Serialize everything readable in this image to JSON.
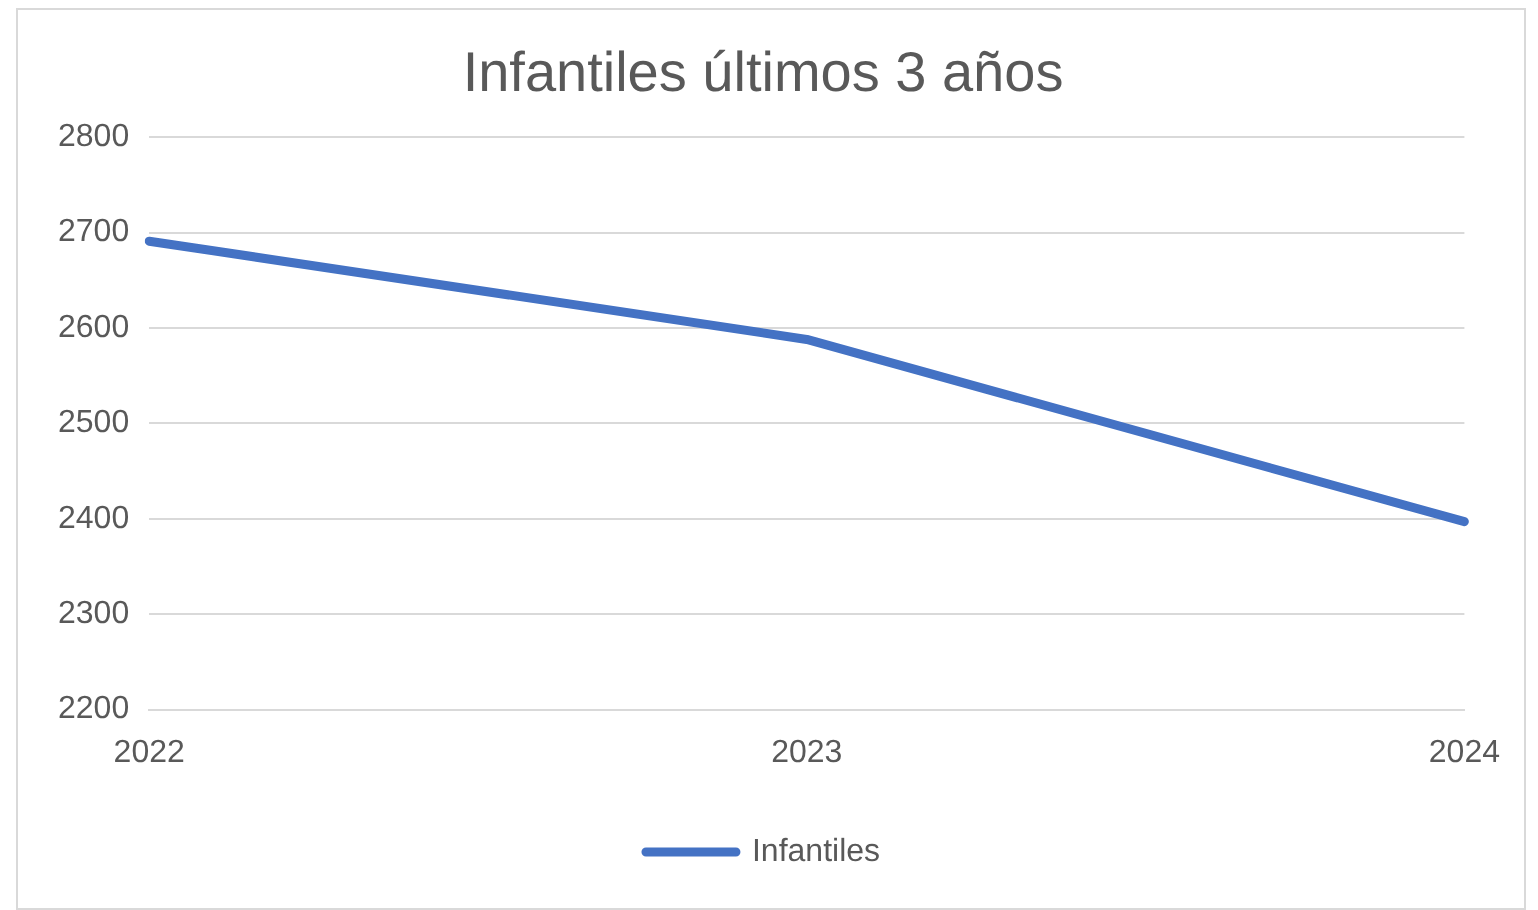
{
  "chart_data": {
    "type": "line",
    "title": "Infantiles últimos 3 años",
    "categories": [
      "2022",
      "2023",
      "2024"
    ],
    "series": [
      {
        "name": "Infantiles",
        "color": "#4472c4",
        "values": [
          2691,
          2588,
          2397
        ]
      }
    ],
    "ylim": [
      2200,
      2800
    ],
    "yticks": [
      2200,
      2300,
      2400,
      2500,
      2600,
      2700,
      2800
    ],
    "grid": "y",
    "legend": "bottom",
    "marker": "none",
    "line_style": "solid"
  }
}
